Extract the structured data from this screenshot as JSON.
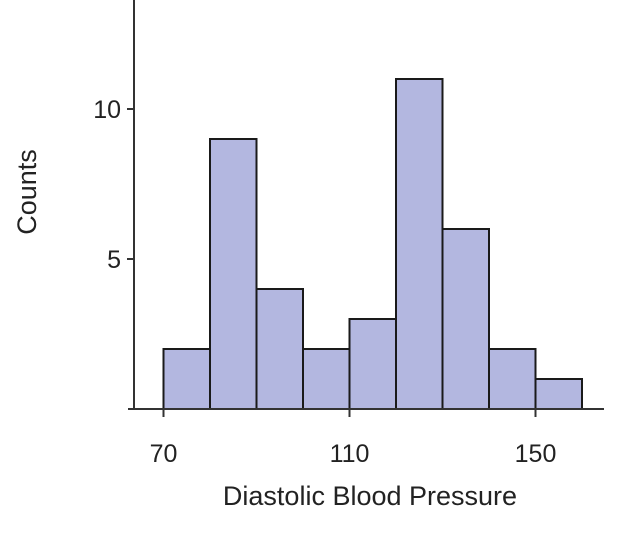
{
  "chart_data": {
    "type": "bar",
    "subtype": "histogram",
    "title": "",
    "xlabel": "Diastolic Blood Pressure",
    "ylabel": "Counts",
    "bin_width": 10,
    "bins": [
      {
        "start": 70,
        "end": 80,
        "count": 2
      },
      {
        "start": 80,
        "end": 90,
        "count": 9
      },
      {
        "start": 90,
        "end": 100,
        "count": 4
      },
      {
        "start": 100,
        "end": 110,
        "count": 2
      },
      {
        "start": 110,
        "end": 120,
        "count": 3
      },
      {
        "start": 120,
        "end": 130,
        "count": 11
      },
      {
        "start": 130,
        "end": 140,
        "count": 6
      },
      {
        "start": 140,
        "end": 150,
        "count": 2
      },
      {
        "start": 150,
        "end": 160,
        "count": 1
      }
    ],
    "xticks": [
      70,
      110,
      150
    ],
    "yticks": [
      5,
      10
    ],
    "xlim": [
      63,
      165
    ],
    "ylim": [
      0,
      13.4
    ],
    "grid": false,
    "legend": "none",
    "colors": {
      "bar_fill": "#b3b7e0",
      "bar_stroke": "#1a1a1a",
      "axis": "#333333",
      "text": "#222222"
    }
  }
}
